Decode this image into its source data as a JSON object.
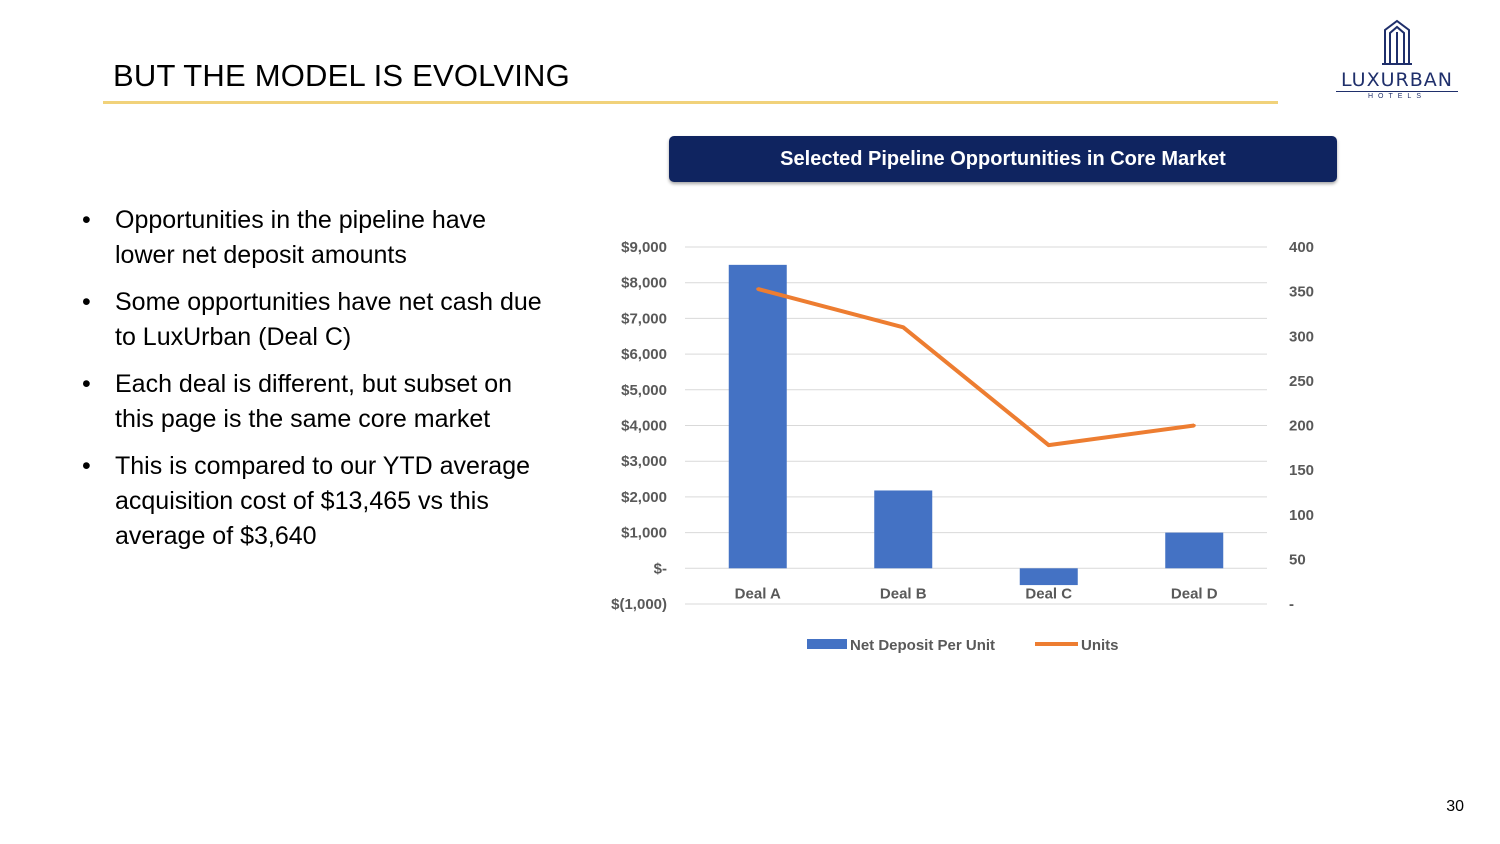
{
  "slide": {
    "title": "BUT THE MODEL IS EVOLVING",
    "page_number": "30",
    "logo": {
      "name": "LUXURBAN",
      "sub": "HOTELS"
    }
  },
  "bullets": [
    "Opportunities in the pipeline have lower net deposit amounts",
    "Some opportunities have net cash due to LuxUrban (Deal C)",
    "Each deal is different, but subset on this page is the same core market",
    "This is compared to our YTD average acquisition cost of $13,465 vs this average of $3,640"
  ],
  "bullet_glyph": "•",
  "colors": {
    "bar": "#4472c4",
    "line": "#ed7d31",
    "header_bg": "#0f2460",
    "rule": "#f1d27a",
    "gridline": "#d9d9d9",
    "axis_text": "#595959"
  },
  "chart_data": {
    "type": "bar",
    "title": "Selected Pipeline Opportunities in Core Market",
    "categories": [
      "Deal A",
      "Deal B",
      "Deal C",
      "Deal D"
    ],
    "series": [
      {
        "name": "Net Deposit Per Unit",
        "type": "bar",
        "axis": "left",
        "values": [
          8500,
          2180,
          -470,
          1000
        ]
      },
      {
        "name": "Units",
        "type": "line",
        "axis": "right",
        "values": [
          353,
          310,
          178,
          200
        ]
      }
    ],
    "y_left": {
      "range": [
        -1000,
        9000
      ],
      "ticks": [
        9000,
        8000,
        7000,
        6000,
        5000,
        4000,
        3000,
        2000,
        1000,
        0,
        -1000
      ],
      "tick_labels": [
        "$9,000",
        "$8,000",
        "$7,000",
        "$6,000",
        "$5,000",
        "$4,000",
        "$3,000",
        "$2,000",
        "$1,000",
        "$-",
        "$(1,000)"
      ]
    },
    "y_right": {
      "range": [
        0,
        400
      ],
      "ticks": [
        400,
        350,
        300,
        250,
        200,
        150,
        100,
        50,
        0
      ],
      "tick_labels": [
        "400",
        "350",
        "300",
        "250",
        "200",
        "150",
        "100",
        "50",
        "-"
      ]
    },
    "legend": {
      "position": "bottom",
      "entries": [
        "Net Deposit Per Unit",
        "Units"
      ]
    },
    "grid": true
  }
}
